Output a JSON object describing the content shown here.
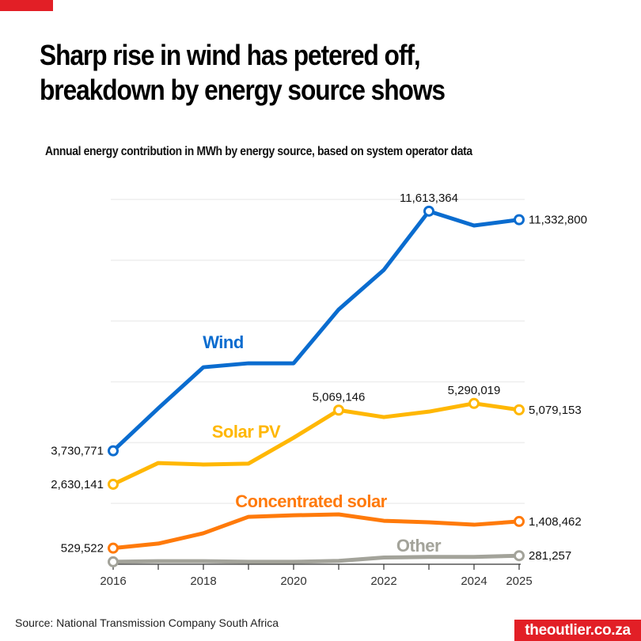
{
  "header": {
    "title": "Sharp rise in wind has petered off, breakdown by energy source shows",
    "subtitle": "Annual energy contribution in MWh by energy source, based on system operator data"
  },
  "footer": {
    "source": "Source: National Transmission Company South Africa",
    "brand": "theoutlier.co.za"
  },
  "colors": {
    "brand_red": "#e21f26",
    "grid": "#eeeeee"
  },
  "chart_data": {
    "type": "line",
    "title": "Sharp rise in wind has petered off, breakdown by energy source shows",
    "subtitle": "Annual energy contribution in MWh by energy source, based on system operator data",
    "xlabel": "",
    "ylabel": "",
    "x": [
      2016,
      2017,
      2018,
      2019,
      2020,
      2021,
      2022,
      2023,
      2024,
      2025
    ],
    "x_tick_labels": [
      "2016",
      "2018",
      "2020",
      "2022",
      "2024",
      "2025"
    ],
    "ylim": [
      0,
      12000000
    ],
    "y_gridlines": [
      0,
      2000000,
      4000000,
      6000000,
      8000000,
      10000000,
      12000000
    ],
    "grid": true,
    "legend": "inline-labels",
    "series": [
      {
        "name": "Wind",
        "color": "#0a6ccf",
        "values": [
          3730771,
          5130000,
          6480000,
          6610000,
          6610000,
          8380000,
          9680000,
          11613364,
          11140000,
          11332800
        ],
        "markers": [
          {
            "index": 0,
            "label": "3,730,771",
            "pos": "left"
          },
          {
            "index": 7,
            "label": "11,613,364",
            "pos": "top"
          },
          {
            "index": 9,
            "label": "11,332,800",
            "pos": "right"
          }
        ]
      },
      {
        "name": "Solar PV",
        "color": "#ffb703",
        "values": [
          2630141,
          3330000,
          3280000,
          3310000,
          4160000,
          5069146,
          4840000,
          5020000,
          5290019,
          5079153
        ],
        "markers": [
          {
            "index": 0,
            "label": "2,630,141",
            "pos": "left"
          },
          {
            "index": 5,
            "label": "5,069,146",
            "pos": "top"
          },
          {
            "index": 8,
            "label": "5,290,019",
            "pos": "top"
          },
          {
            "index": 9,
            "label": "5,079,153",
            "pos": "right"
          }
        ]
      },
      {
        "name": "Concentrated solar",
        "color": "#ff7a0a",
        "values": [
          529522,
          680000,
          1020000,
          1560000,
          1610000,
          1640000,
          1430000,
          1380000,
          1300000,
          1408462
        ],
        "markers": [
          {
            "index": 0,
            "label": "529,522",
            "pos": "left"
          },
          {
            "index": 9,
            "label": "1,408,462",
            "pos": "right"
          }
        ]
      },
      {
        "name": "Other",
        "color": "#a3a39a",
        "values": [
          80000,
          100000,
          100000,
          80000,
          80000,
          110000,
          220000,
          240000,
          240000,
          281257
        ],
        "markers": [
          {
            "index": 0,
            "label": "",
            "pos": "none"
          },
          {
            "index": 9,
            "label": "281,257",
            "pos": "right"
          }
        ]
      }
    ],
    "series_labels": [
      {
        "name": "Wind",
        "text": "Wind"
      },
      {
        "name": "Solar PV",
        "text": "Solar PV"
      },
      {
        "name": "Concentrated solar",
        "text": "Concentrated solar"
      },
      {
        "name": "Other",
        "text": "Other"
      }
    ]
  }
}
